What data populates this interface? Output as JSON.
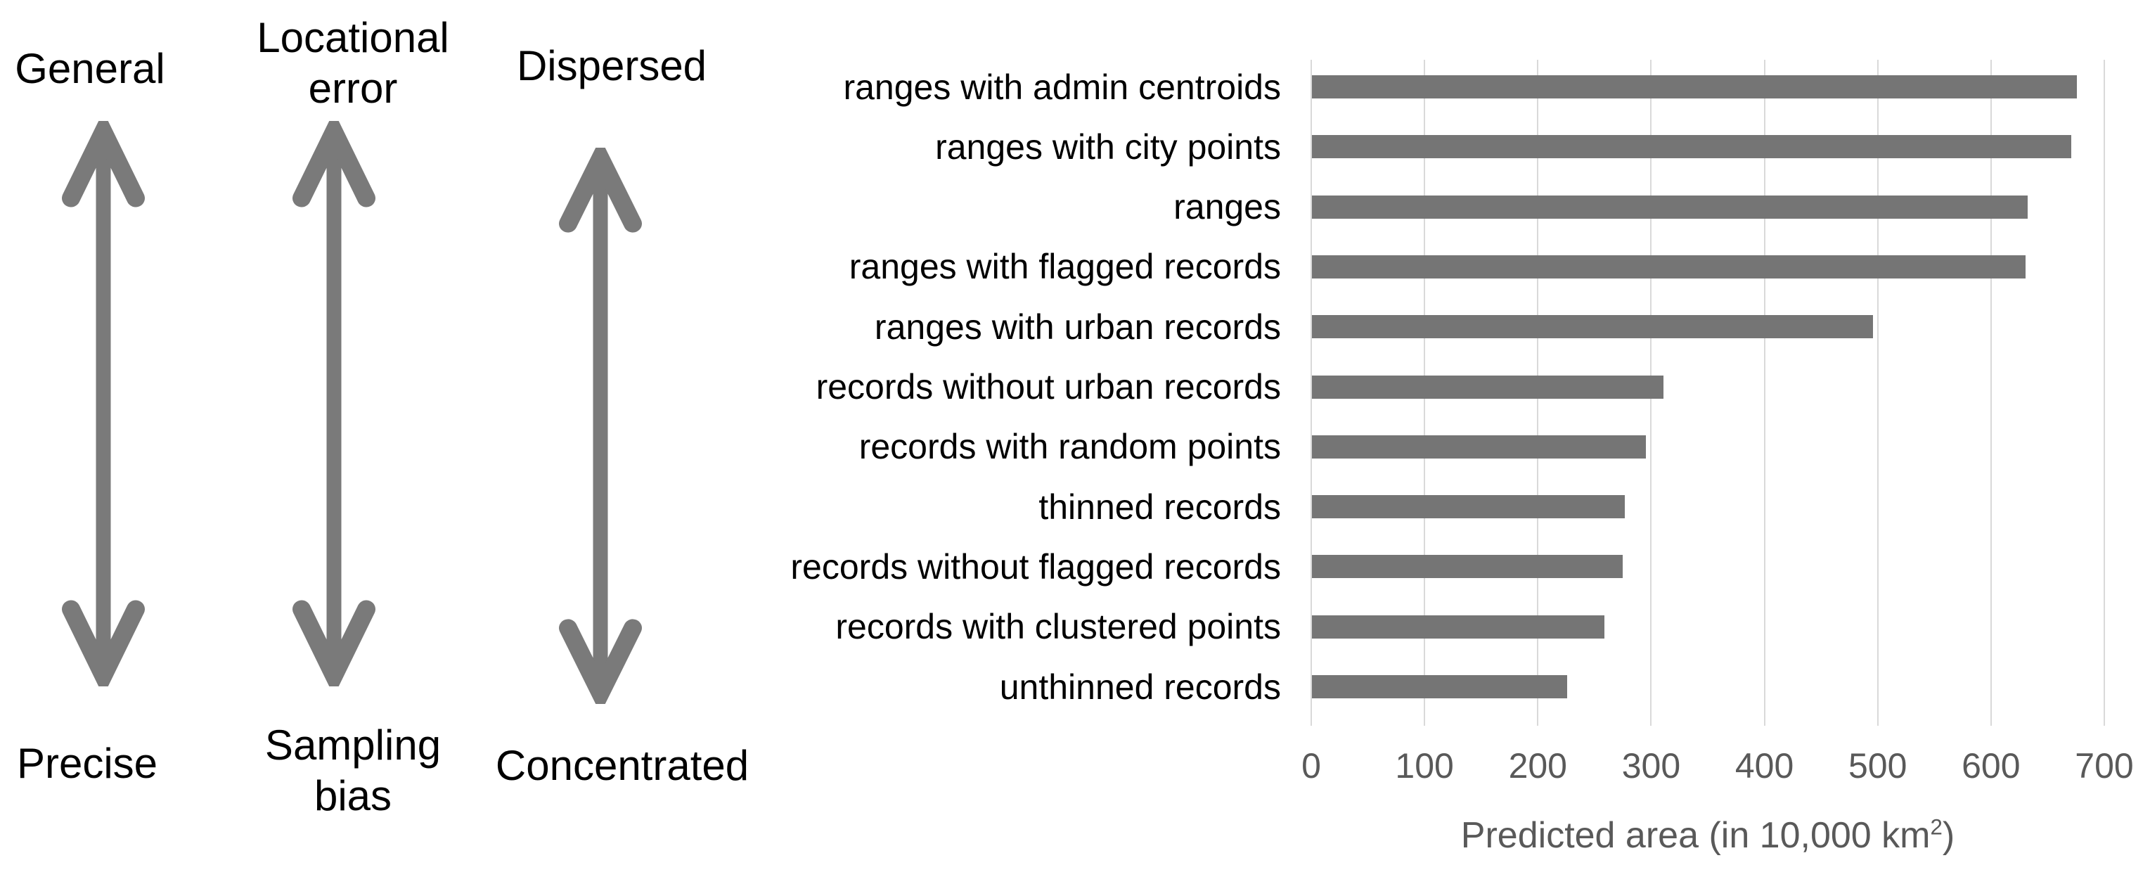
{
  "figure": {
    "background": "#ffffff"
  },
  "diagram": {
    "arrow_icon": "double-vertical-arrow",
    "arrow_color": "#7a7a7a",
    "label_color": "#000000",
    "axes": [
      {
        "id": "generalization",
        "top": "General",
        "bottom": "Precise"
      },
      {
        "id": "error-bias",
        "top": "Locational error",
        "bottom": "Sampling bias"
      },
      {
        "id": "dispersion",
        "top": "Dispersed",
        "bottom": "Concentrated"
      }
    ]
  },
  "chart_data": {
    "type": "bar",
    "orientation": "horizontal",
    "title": "",
    "categories": [
      "ranges with admin centroids",
      "ranges with city points",
      "ranges",
      "ranges with flagged records",
      "ranges with urban records",
      "records without urban records",
      "records with random points",
      "thinned records",
      "records without flagged records",
      "records with clustered points",
      "unthinned records"
    ],
    "values": [
      675,
      670,
      632,
      630,
      495,
      310,
      295,
      276,
      274,
      258,
      225
    ],
    "xlabel": "Predicted area (in 10,000 km²)",
    "xlabel_parts": {
      "prefix": "Predicted area (in 10,000 km",
      "sup": "2",
      "suffix": ")"
    },
    "ylabel": "",
    "xlim": [
      0,
      700
    ],
    "xticks": [
      0,
      100,
      200,
      300,
      400,
      500,
      600,
      700
    ],
    "grid": "vertical",
    "legend": "none",
    "bar_color": "#757575",
    "gridline_color": "#d9d9d9",
    "tick_label_color": "#595959",
    "axis_title_color": "#595959",
    "category_label_color": "#000000"
  }
}
